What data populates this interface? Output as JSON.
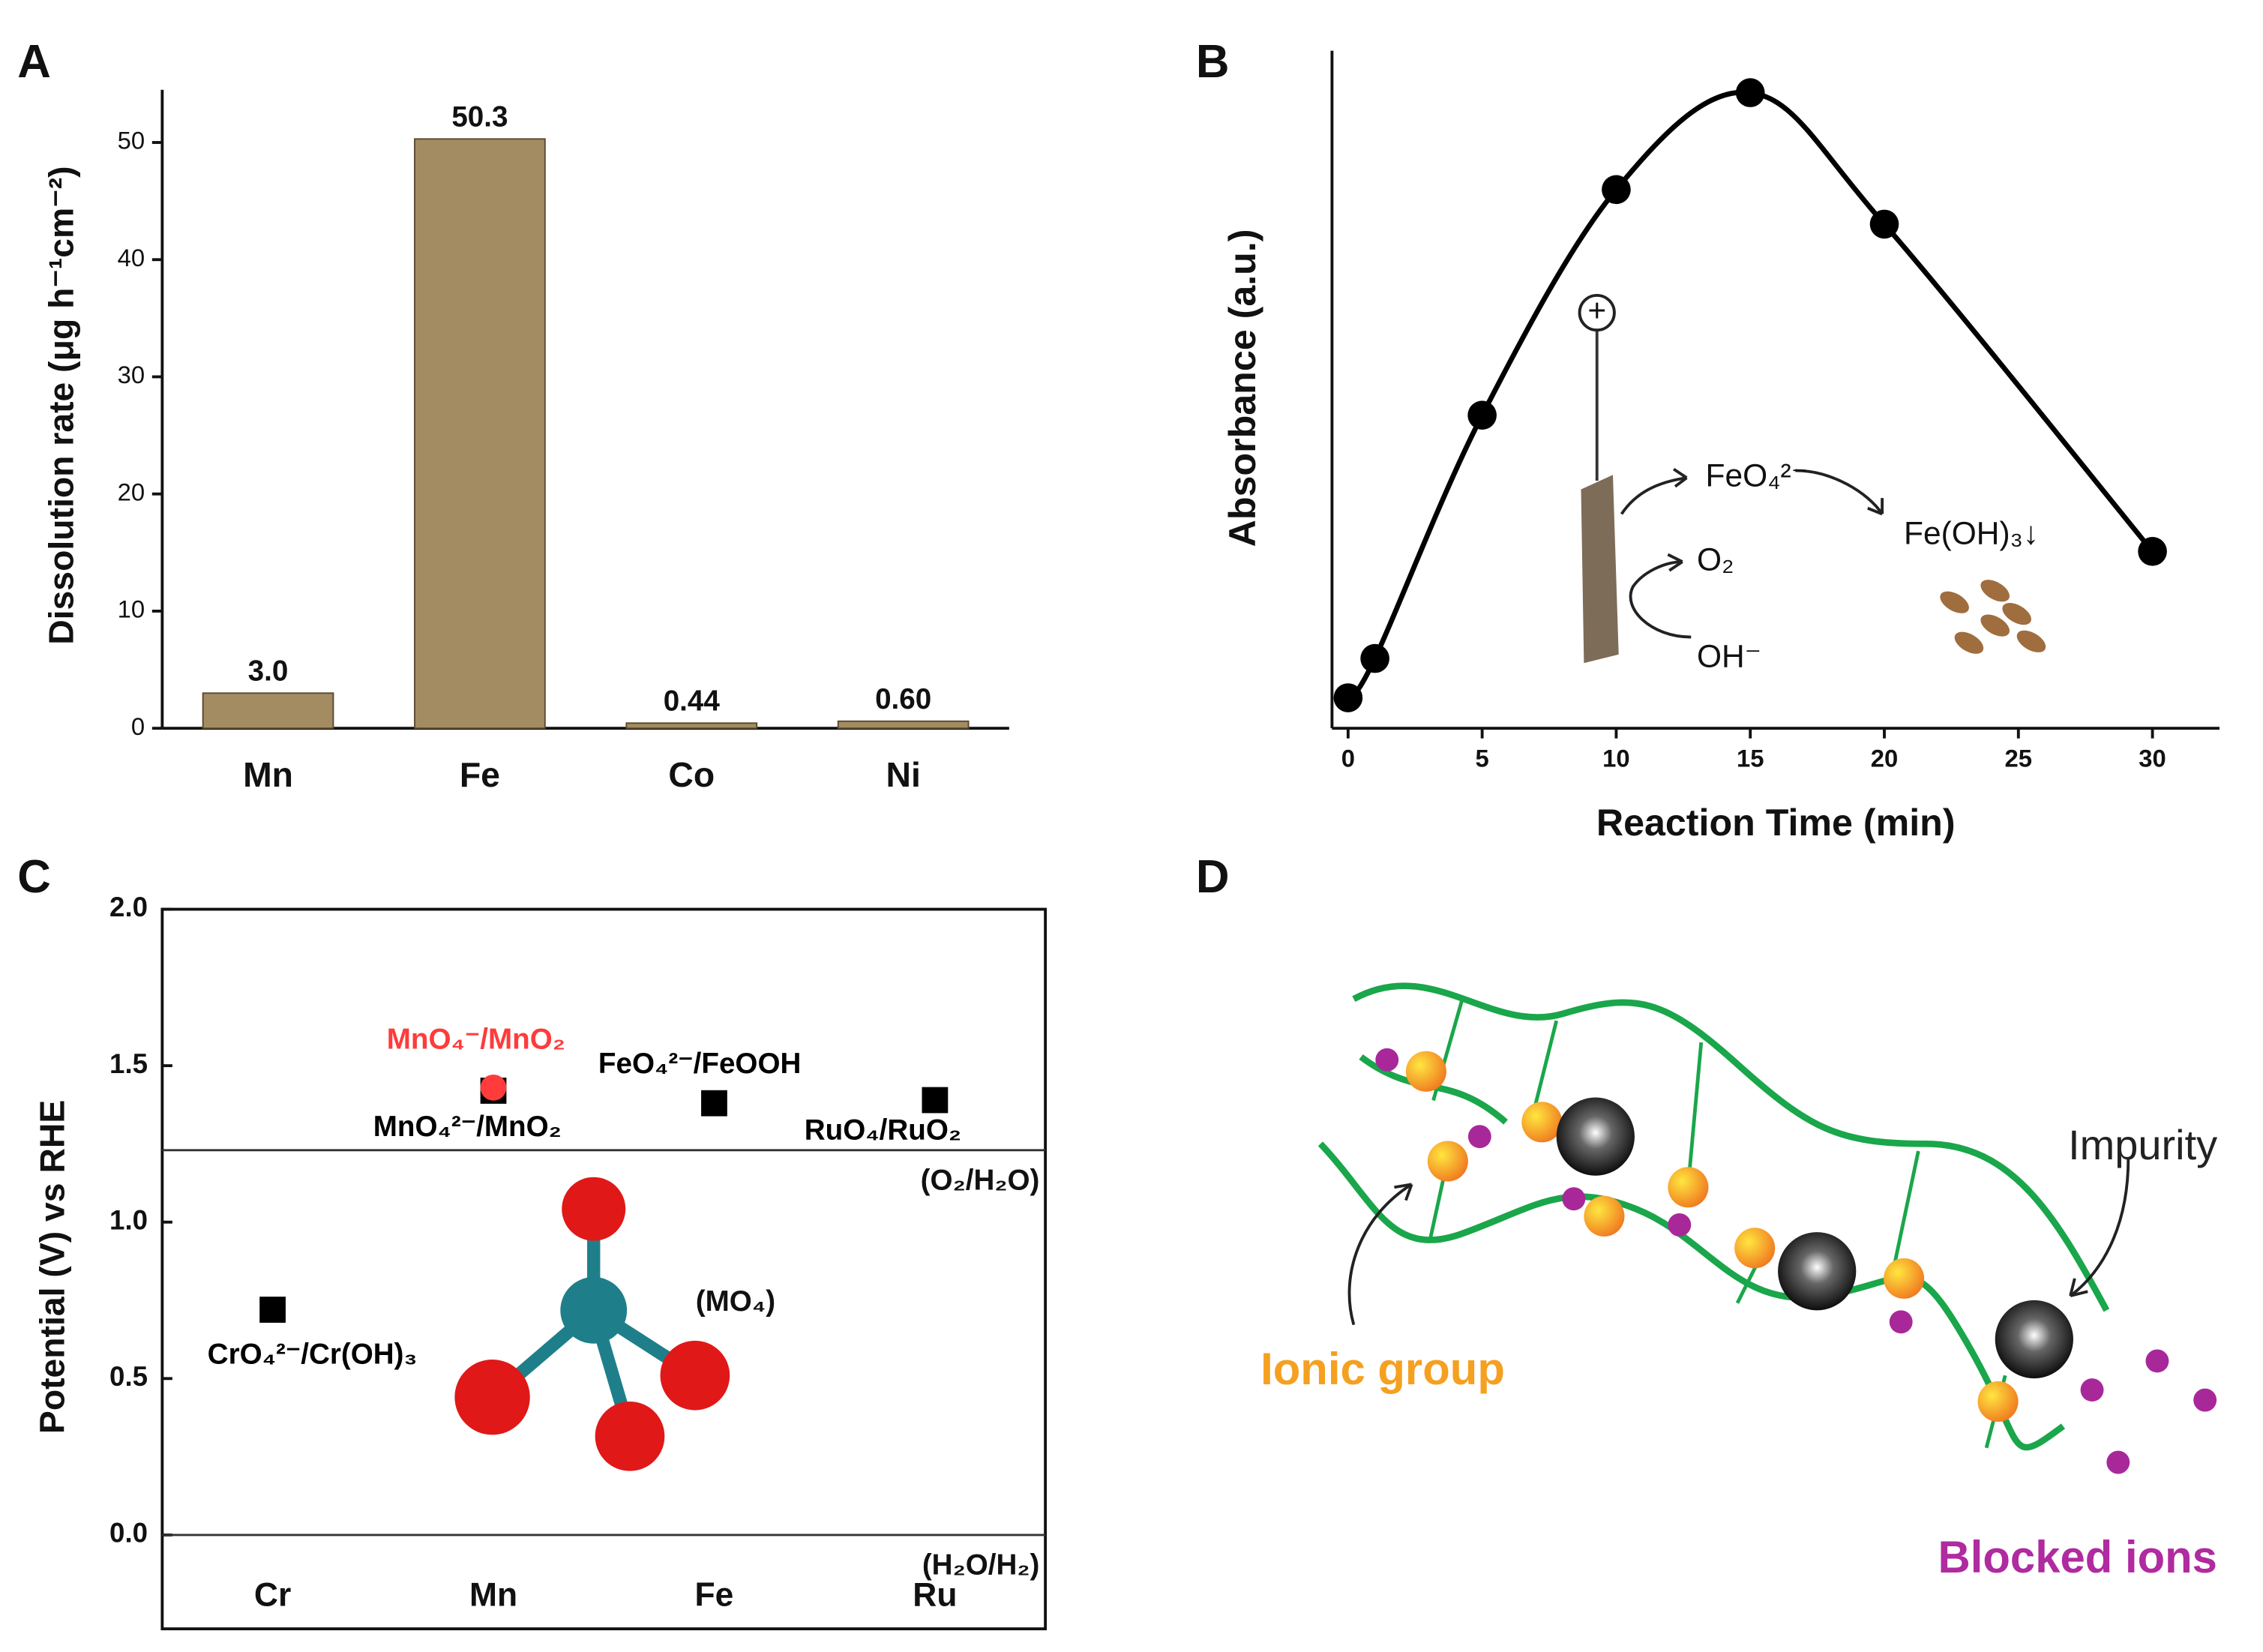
{
  "chart_data": [
    {
      "type": "bar",
      "panel_label": "A",
      "ylabel": "Dissolution rate (μg h⁻¹cm⁻²)",
      "categories": [
        "Mn",
        "Fe",
        "Co",
        "Ni"
      ],
      "values": [
        3.0,
        50.3,
        0.44,
        0.6
      ],
      "value_labels": [
        "3.0",
        "50.3",
        "0.44",
        "0.60"
      ],
      "color": "#a38c62",
      "ylim": [
        0,
        54.5
      ],
      "yticks": [
        0,
        10,
        20,
        30,
        40,
        50
      ]
    },
    {
      "type": "line",
      "panel_label": "B",
      "xlabel": "Reaction Time (min)",
      "ylabel": "Absorbance (a.u.)",
      "x": [
        0,
        1,
        5,
        10,
        15,
        20,
        30
      ],
      "values": [
        0.045,
        0.103,
        0.462,
        0.795,
        0.938,
        0.744,
        0.261
      ],
      "color": "#000000",
      "xlim": [
        -0.6,
        32.5
      ],
      "ylim": [
        0,
        1
      ],
      "xticks": [
        0,
        5,
        10,
        15,
        20,
        25,
        30
      ],
      "annotations": [
        "+",
        "FeO₄²⁻",
        "O₂",
        "OH⁻",
        "Fe(OH)₃↓"
      ]
    },
    {
      "type": "scatter",
      "panel_label": "C",
      "ylabel": "Potential (V) vs RHE",
      "categories": [
        "Cr",
        "Mn",
        "Fe",
        "Ru"
      ],
      "points": [
        {
          "label": "CrO₄²⁻/Cr(OH)₃",
          "category": "Cr",
          "value": 0.72,
          "color": "#000000",
          "marker": "square"
        },
        {
          "label": "MnO₄²⁻/MnO₂",
          "category": "Mn",
          "value": 1.42,
          "color": "#000000",
          "marker": "square"
        },
        {
          "label": "MnO₄⁻/MnO₂",
          "category": "Mn",
          "value": 1.43,
          "color": "#ff3b3b",
          "marker": "circle"
        },
        {
          "label": "FeO₄²⁻/FeOOH",
          "category": "Fe",
          "value": 1.38,
          "color": "#000000",
          "marker": "square"
        },
        {
          "label": "RuO₄/RuO₂",
          "category": "Ru",
          "value": 1.39,
          "color": "#000000",
          "marker": "square"
        }
      ],
      "reference_lines": [
        {
          "value": 1.23,
          "label": "(O₂/H₂O)"
        },
        {
          "value": 0,
          "label": "(H₂O/H₂)"
        }
      ],
      "annotation": "(MO₄)",
      "ylim": [
        -0.3,
        2.0
      ],
      "yticks": [
        {
          "value": 0,
          "label": "0.0"
        },
        0.5,
        {
          "value": 1,
          "label": "1.0"
        },
        1.5,
        {
          "value": 2,
          "label": "2.0"
        }
      ]
    }
  ],
  "diagram": {
    "panel_label": "D",
    "labels": [
      "Impurity",
      "Ionic group",
      "Blocked ions"
    ]
  }
}
